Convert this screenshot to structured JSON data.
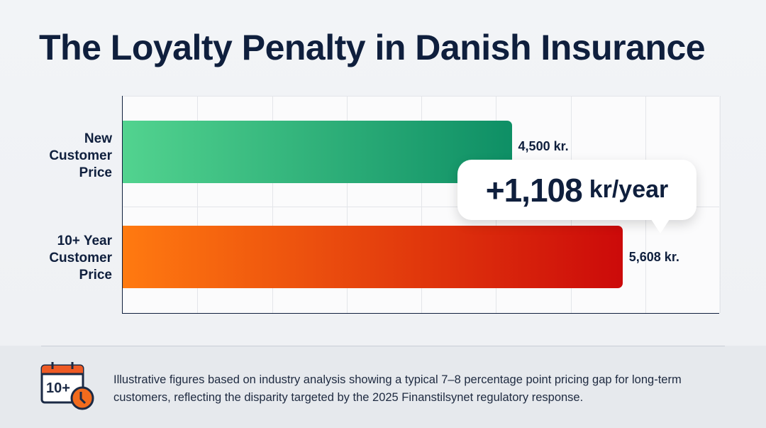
{
  "title": "The Loyalty Penalty in Danish Insurance",
  "chart_data": {
    "type": "bar",
    "orientation": "horizontal",
    "title": "The Loyalty Penalty in Danish Insurance",
    "categories": [
      "New Customer Price",
      "10+ Year Customer Price"
    ],
    "category_lines": [
      [
        "New",
        "Customer",
        "Price"
      ],
      [
        "10+ Year",
        "Customer",
        "Price"
      ]
    ],
    "values": [
      4500,
      5608
    ],
    "data_labels": [
      "4,500 kr.",
      "5,608 kr."
    ],
    "xlim": [
      0,
      6700
    ],
    "grid": true,
    "colors": [
      [
        "#52d38f",
        "#0e8f65"
      ],
      [
        "#ff7a10",
        "#cc0a0a"
      ]
    ],
    "annotation": {
      "value": "+1,108",
      "unit": "kr/year"
    }
  },
  "footer": {
    "icon": "calendar-10plus-clock-icon",
    "icon_text": "10+",
    "text": "Illustrative figures based on industry analysis showing a typical 7–8 percentage point pricing gap for long-term customers, reflecting the disparity targeted by the 2025 Finanstilsynet regulatory response."
  }
}
